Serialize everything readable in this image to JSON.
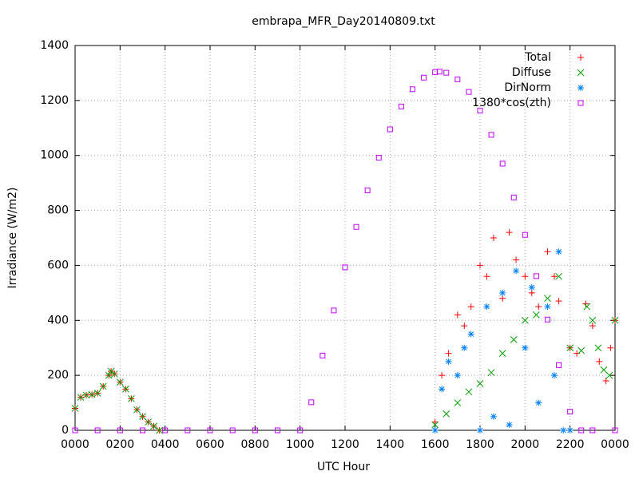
{
  "chart_data": {
    "type": "scatter",
    "title": "embrapa_MFR_Day20140809.txt",
    "x_label": "UTC Hour",
    "y_label": "Irradiance (W/m2)",
    "xlim": [
      0,
      24
    ],
    "ylim": [
      0,
      1400
    ],
    "xticks": [
      {
        "value": 0,
        "label": "0000"
      },
      {
        "value": 2,
        "label": "0200"
      },
      {
        "value": 4,
        "label": "0400"
      },
      {
        "value": 6,
        "label": "0600"
      },
      {
        "value": 8,
        "label": "0800"
      },
      {
        "value": 10,
        "label": "1000"
      },
      {
        "value": 12,
        "label": "1200"
      },
      {
        "value": 14,
        "label": "1400"
      },
      {
        "value": 16,
        "label": "1600"
      },
      {
        "value": 18,
        "label": "1800"
      },
      {
        "value": 20,
        "label": "2000"
      },
      {
        "value": 22,
        "label": "2200"
      },
      {
        "value": 24,
        "label": "0000"
      }
    ],
    "yticks": [
      0,
      200,
      400,
      600,
      800,
      1000,
      1200,
      1400
    ],
    "grid": true,
    "legend": "top-right",
    "series": [
      {
        "name": "Total",
        "color": "#ff0000",
        "marker": "plus",
        "x": [
          0,
          0.25,
          0.5,
          0.75,
          1,
          1.25,
          1.5,
          1.6,
          1.75,
          2,
          2.25,
          2.5,
          2.75,
          3,
          3.25,
          3.5,
          3.75,
          16,
          16.3,
          16.6,
          17,
          17.3,
          17.6,
          18,
          18.3,
          18.6,
          19,
          19.3,
          19.6,
          20,
          20.3,
          20.6,
          21,
          21.3,
          21.5,
          22,
          22.3,
          22.7,
          23,
          23.3,
          23.6,
          23.8,
          24
        ],
        "values": [
          80,
          120,
          128,
          130,
          135,
          160,
          200,
          215,
          205,
          175,
          150,
          115,
          75,
          50,
          30,
          15,
          0,
          30,
          200,
          280,
          420,
          380,
          450,
          600,
          560,
          700,
          480,
          720,
          620,
          560,
          500,
          450,
          650,
          560,
          470,
          300,
          280,
          460,
          380,
          250,
          180,
          300,
          400
        ]
      },
      {
        "name": "Diffuse",
        "color": "#00a000",
        "marker": "cross",
        "x": [
          0,
          0.25,
          0.5,
          0.75,
          1,
          1.25,
          1.5,
          1.6,
          1.75,
          2,
          2.25,
          2.5,
          2.75,
          3,
          3.25,
          3.5,
          3.75,
          16,
          16.5,
          17,
          17.5,
          18,
          18.5,
          19,
          19.5,
          20,
          20.5,
          21,
          21.5,
          22,
          22.5,
          22.75,
          23,
          23.25,
          23.5,
          23.75,
          24
        ],
        "values": [
          80,
          120,
          128,
          130,
          135,
          160,
          200,
          215,
          205,
          175,
          150,
          115,
          75,
          50,
          30,
          15,
          0,
          20,
          60,
          100,
          140,
          170,
          210,
          280,
          330,
          400,
          420,
          480,
          560,
          300,
          290,
          450,
          400,
          300,
          220,
          200,
          400
        ]
      },
      {
        "name": "DirNorm",
        "color": "#0080ff",
        "marker": "star",
        "x": [
          16,
          16.3,
          16.6,
          17,
          17.3,
          17.6,
          18,
          18.3,
          18.6,
          19,
          19.3,
          19.6,
          20,
          20.3,
          20.6,
          21,
          21.3,
          21.5,
          21.7,
          22
        ],
        "values": [
          0,
          150,
          250,
          200,
          300,
          350,
          0,
          450,
          50,
          500,
          20,
          580,
          300,
          520,
          100,
          450,
          200,
          650,
          0,
          0
        ]
      },
      {
        "name": "1380*cos(zth)",
        "color": "#c000ff",
        "marker": "square",
        "x": [
          0,
          1,
          2,
          3,
          4,
          5,
          6,
          7,
          8,
          9,
          10,
          10.5,
          11,
          11.5,
          12,
          12.5,
          13,
          13.5,
          14,
          14.5,
          15,
          15.5,
          16,
          16.2,
          16.5,
          17,
          17.5,
          18,
          18.5,
          19,
          19.5,
          20,
          20.5,
          21,
          21.5,
          22,
          22.5,
          23,
          24
        ],
        "values": [
          0,
          0,
          0,
          0,
          0,
          0,
          0,
          0,
          0,
          0,
          0,
          102,
          272,
          436,
          593,
          740,
          873,
          992,
          1095,
          1178,
          1241,
          1283,
          1303,
          1305,
          1301,
          1277,
          1231,
          1163,
          1075,
          970,
          847,
          711,
          561,
          403,
          237,
          68,
          0,
          0,
          0
        ]
      }
    ]
  }
}
